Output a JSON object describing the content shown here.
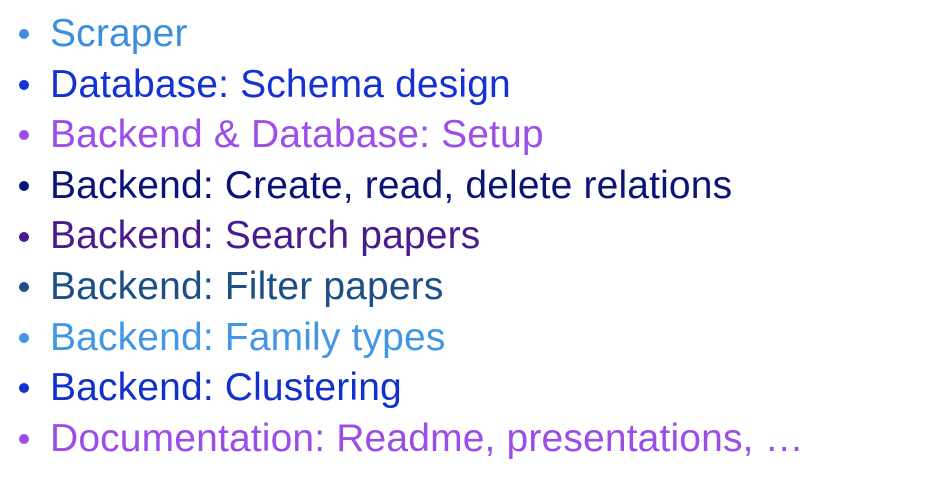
{
  "items": [
    {
      "text": "Scraper",
      "color": "#3d8fdd"
    },
    {
      "text": "Database: Schema design",
      "color": "#1431d4"
    },
    {
      "text": "Backend & Database: Setup",
      "color": "#9b4fe6"
    },
    {
      "text": "Backend: Create, read, delete relations",
      "color": "#0a1477"
    },
    {
      "text": "Backend: Search papers",
      "color": "#4a1b8c"
    },
    {
      "text": "Backend: Filter papers",
      "color": "#1d4f86"
    },
    {
      "text": "Backend: Family types",
      "color": "#4396e4"
    },
    {
      "text": "Backend: Clustering",
      "color": "#1230cf"
    },
    {
      "text": "Documentation: Readme, presentations, …",
      "color": "#9a4ee8"
    }
  ]
}
